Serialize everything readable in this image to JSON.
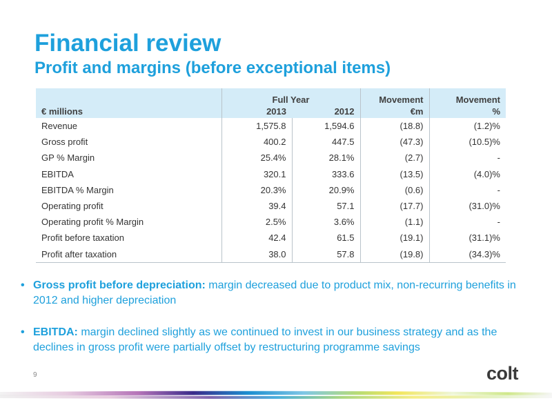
{
  "header": {
    "title": "Financial review",
    "subtitle": "Profit and margins (before exceptional items)"
  },
  "table": {
    "units_label": "€ millions",
    "group_label": "Full Year",
    "year_current": "2013",
    "year_prior": "2012",
    "movement_abs_label_1": "Movement",
    "movement_abs_label_2": "€m",
    "movement_pct_label_1": "Movement",
    "movement_pct_label_2": "%",
    "rows": [
      {
        "label": "Revenue",
        "y2013": "1,575.8",
        "y2012": "1,594.6",
        "mv_abs": "(18.8)",
        "mv_pct": "(1.2)%"
      },
      {
        "label": "Gross profit",
        "y2013": "400.2",
        "y2012": "447.5",
        "mv_abs": "(47.3)",
        "mv_pct": "(10.5)%"
      },
      {
        "label": "GP % Margin",
        "y2013": "25.4%",
        "y2012": "28.1%",
        "mv_abs": "(2.7)",
        "mv_pct": "-"
      },
      {
        "label": "EBITDA",
        "y2013": "320.1",
        "y2012": "333.6",
        "mv_abs": "(13.5)",
        "mv_pct": "(4.0)%"
      },
      {
        "label": "EBITDA % Margin",
        "y2013": "20.3%",
        "y2012": "20.9%",
        "mv_abs": "(0.6)",
        "mv_pct": "-"
      },
      {
        "label": "Operating profit",
        "y2013": "39.4",
        "y2012": "57.1",
        "mv_abs": "(17.7)",
        "mv_pct": "(31.0)%"
      },
      {
        "label": "Operating profit % Margin",
        "y2013": "2.5%",
        "y2012": "3.6%",
        "mv_abs": "(1.1)",
        "mv_pct": "-"
      },
      {
        "label": "Profit before taxation",
        "y2013": "42.4",
        "y2012": "61.5",
        "mv_abs": "(19.1)",
        "mv_pct": "(31.1)%"
      },
      {
        "label": "Profit after taxation",
        "y2013": "38.0",
        "y2012": "57.8",
        "mv_abs": "(19.8)",
        "mv_pct": "(34.3)%"
      }
    ]
  },
  "bullets": [
    {
      "heading": "Gross profit before depreciation:",
      "text": " margin decreased due to product mix, non-recurring benefits in 2012 and higher depreciation"
    },
    {
      "heading": "EBITDA:",
      "text": " margin declined slightly as we continued to invest in our business strategy and as the declines in gross profit were partially offset by restructuring programme savings"
    }
  ],
  "footer": {
    "page_number": "9",
    "logo_text": "colt"
  },
  "colors": {
    "accent": "#1ea0dc",
    "header_fill": "#d4ecf8",
    "text": "#333333"
  }
}
